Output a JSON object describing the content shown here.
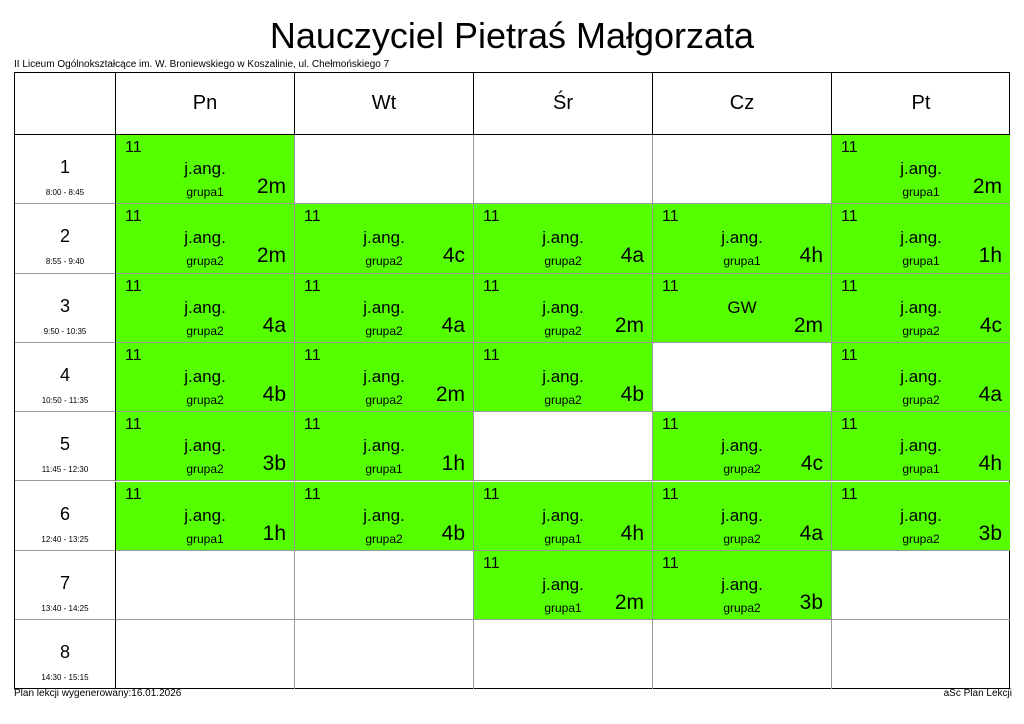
{
  "header": {
    "title": "Nauczyciel Pietraś Małgorzata",
    "school": "II Liceum Ogólnokształcące im. W. Broniewskiego w Koszalinie, ul. Chełmońskiego 7"
  },
  "footer": {
    "generated": "Plan lekcji wygenerowany:16.01.2026",
    "app": "aSc Plan Lekcji"
  },
  "colors": {
    "lesson_bg": "#55ff00",
    "border": "#000000"
  },
  "days": [
    "Pn",
    "Wt",
    "Śr",
    "Cz",
    "Pt"
  ],
  "periods": [
    {
      "num": "1",
      "time": "8:00 - 8:45"
    },
    {
      "num": "2",
      "time": "8:55 - 9:40"
    },
    {
      "num": "3",
      "time": "9:50 - 10:35"
    },
    {
      "num": "4",
      "time": "10:50 - 11:35"
    },
    {
      "num": "5",
      "time": "11:45 - 12:30"
    },
    {
      "num": "6",
      "time": "12:40 - 13:25"
    },
    {
      "num": "7",
      "time": "13:40 - 14:25"
    },
    {
      "num": "8",
      "time": "14:30 - 15:15"
    }
  ],
  "schedule": [
    [
      {
        "room": "11",
        "subject": "j.ang.",
        "group": "grupa1",
        "class": "2m"
      },
      null,
      null,
      null,
      {
        "room": "11",
        "subject": "j.ang.",
        "group": "grupa1",
        "class": "2m"
      }
    ],
    [
      {
        "room": "11",
        "subject": "j.ang.",
        "group": "grupa2",
        "class": "2m"
      },
      {
        "room": "11",
        "subject": "j.ang.",
        "group": "grupa2",
        "class": "4c"
      },
      {
        "room": "11",
        "subject": "j.ang.",
        "group": "grupa2",
        "class": "4a"
      },
      {
        "room": "11",
        "subject": "j.ang.",
        "group": "grupa1",
        "class": "4h"
      },
      {
        "room": "11",
        "subject": "j.ang.",
        "group": "grupa1",
        "class": "1h"
      }
    ],
    [
      {
        "room": "11",
        "subject": "j.ang.",
        "group": "grupa2",
        "class": "4a"
      },
      {
        "room": "11",
        "subject": "j.ang.",
        "group": "grupa2",
        "class": "4a"
      },
      {
        "room": "11",
        "subject": "j.ang.",
        "group": "grupa2",
        "class": "2m"
      },
      {
        "room": "11",
        "subject": "GW",
        "group": "",
        "class": "2m"
      },
      {
        "room": "11",
        "subject": "j.ang.",
        "group": "grupa2",
        "class": "4c"
      }
    ],
    [
      {
        "room": "11",
        "subject": "j.ang.",
        "group": "grupa2",
        "class": "4b"
      },
      {
        "room": "11",
        "subject": "j.ang.",
        "group": "grupa2",
        "class": "2m"
      },
      {
        "room": "11",
        "subject": "j.ang.",
        "group": "grupa2",
        "class": "4b"
      },
      null,
      {
        "room": "11",
        "subject": "j.ang.",
        "group": "grupa2",
        "class": "4a"
      }
    ],
    [
      {
        "room": "11",
        "subject": "j.ang.",
        "group": "grupa2",
        "class": "3b"
      },
      {
        "room": "11",
        "subject": "j.ang.",
        "group": "grupa1",
        "class": "1h"
      },
      null,
      {
        "room": "11",
        "subject": "j.ang.",
        "group": "grupa2",
        "class": "4c"
      },
      {
        "room": "11",
        "subject": "j.ang.",
        "group": "grupa1",
        "class": "4h"
      }
    ],
    [
      {
        "room": "11",
        "subject": "j.ang.",
        "group": "grupa1",
        "class": "1h"
      },
      {
        "room": "11",
        "subject": "j.ang.",
        "group": "grupa2",
        "class": "4b"
      },
      {
        "room": "11",
        "subject": "j.ang.",
        "group": "grupa1",
        "class": "4h"
      },
      {
        "room": "11",
        "subject": "j.ang.",
        "group": "grupa2",
        "class": "4a"
      },
      {
        "room": "11",
        "subject": "j.ang.",
        "group": "grupa2",
        "class": "3b"
      }
    ],
    [
      null,
      null,
      {
        "room": "11",
        "subject": "j.ang.",
        "group": "grupa1",
        "class": "2m"
      },
      {
        "room": "11",
        "subject": "j.ang.",
        "group": "grupa2",
        "class": "3b"
      },
      null
    ],
    [
      null,
      null,
      null,
      null,
      null
    ]
  ]
}
